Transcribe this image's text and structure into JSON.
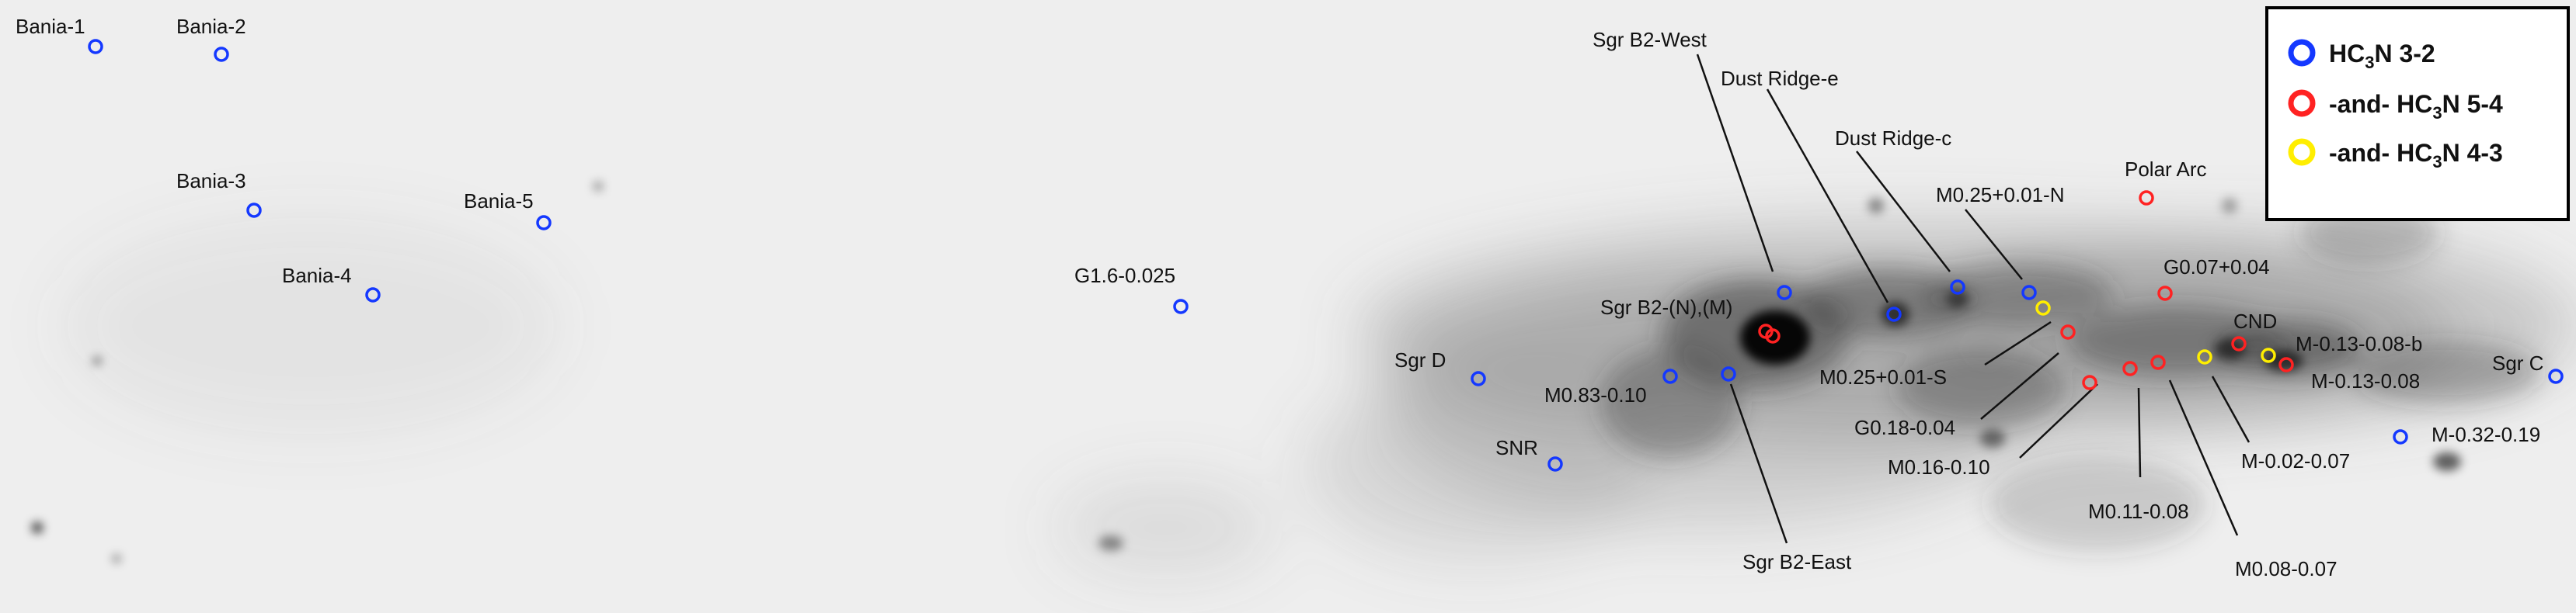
{
  "colors": {
    "background": "#eeeeee",
    "hc3n_3_2": "#1438ff",
    "hc3n_5_4": "#ff2222",
    "hc3n_4_3": "#ffee00",
    "text": "#111111"
  },
  "legend": {
    "entries": [
      {
        "prefix": "",
        "base": "HC",
        "sub": "3",
        "suffix": "N 3-2",
        "color": "#1438ff"
      },
      {
        "prefix": "-and- ",
        "base": "HC",
        "sub": "3",
        "suffix": "N 5-4",
        "color": "#ff2222"
      },
      {
        "prefix": "-and- ",
        "base": "HC",
        "sub": "3",
        "suffix": "N 4-3",
        "color": "#ffee00"
      }
    ]
  },
  "labels": [
    "Bania-1",
    "Bania-2",
    "Bania-3",
    "Bania-5",
    "Bania-4",
    "G1.6-0.025",
    "Sgr B2-West",
    "Dust Ridge-e",
    "Dust Ridge-c",
    "Polar Arc",
    "M0.25+0.01-N",
    "G0.07+0.04",
    "Sgr B2-(N),(M)",
    "CND",
    "M-0.13-0.08-b",
    "Sgr C",
    "Sgr D",
    "M0.25+0.01-S",
    "M-0.13-0.08",
    "M0.83-0.10",
    "G0.18-0.04",
    "M-0.32-0.19",
    "SNR",
    "M0.16-0.10",
    "M-0.02-0.07",
    "M0.11-0.08",
    "Sgr B2-East",
    "M0.08-0.07"
  ],
  "markers": [
    {
      "id": "bania-1",
      "type": "blue"
    },
    {
      "id": "bania-2",
      "type": "blue"
    },
    {
      "id": "bania-3",
      "type": "blue"
    },
    {
      "id": "bania-5",
      "type": "blue"
    },
    {
      "id": "bania-4",
      "type": "blue"
    },
    {
      "id": "g1.6",
      "type": "blue"
    },
    {
      "id": "sgr-d",
      "type": "blue"
    },
    {
      "id": "snr",
      "type": "blue"
    },
    {
      "id": "m0.83",
      "type": "blue"
    },
    {
      "id": "sgr-b2-east",
      "type": "blue"
    },
    {
      "id": "sgr-b2-west",
      "type": "blue"
    },
    {
      "id": "dust-ridge-e",
      "type": "blue"
    },
    {
      "id": "dust-ridge-c",
      "type": "blue"
    },
    {
      "id": "m0.25-n",
      "type": "blue"
    },
    {
      "id": "m0.25-n-yellow",
      "type": "yellow"
    },
    {
      "id": "sgr-b2-n",
      "type": "red"
    },
    {
      "id": "sgr-b2-m",
      "type": "red"
    },
    {
      "id": "m0.25-s",
      "type": "red"
    },
    {
      "id": "g0.18",
      "type": "red"
    },
    {
      "id": "m0.16",
      "type": "red"
    },
    {
      "id": "m0.11",
      "type": "red"
    },
    {
      "id": "polar-arc",
      "type": "red"
    },
    {
      "id": "g0.07",
      "type": "red"
    },
    {
      "id": "m0.08",
      "type": "red"
    },
    {
      "id": "m-0.02",
      "type": "yellow"
    },
    {
      "id": "cnd",
      "type": "red"
    },
    {
      "id": "m-0.13-b",
      "type": "yellow"
    },
    {
      "id": "m-0.13",
      "type": "red"
    },
    {
      "id": "sgr-c",
      "type": "blue"
    },
    {
      "id": "m-0.32",
      "type": "blue"
    }
  ]
}
